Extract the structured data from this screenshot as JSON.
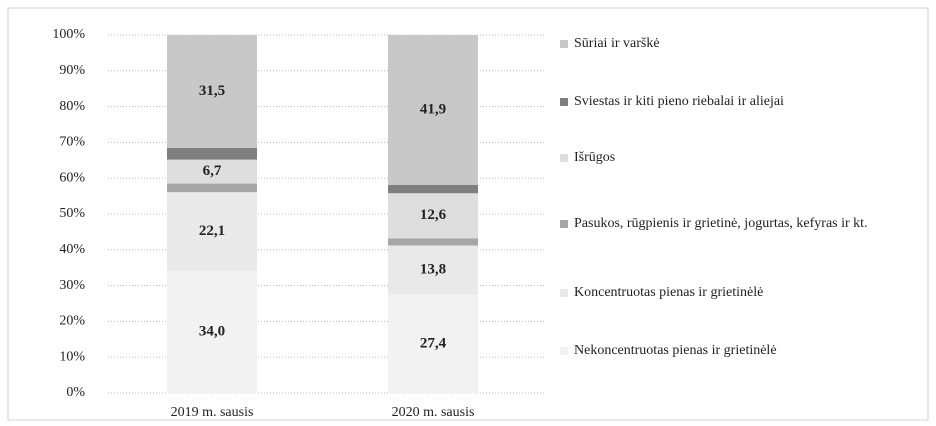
{
  "chart_data": {
    "type": "stacked_bar",
    "categories": [
      "2019 m. sausis",
      "2020 m. sausis"
    ],
    "series": [
      {
        "name": "Nekoncentruotas pienas ir grietinėlė",
        "color": "#f2f2f2",
        "values": [
          34.0,
          27.4
        ],
        "value_labels": [
          "34,0",
          "27,4"
        ]
      },
      {
        "name": "Koncentruotas pienas ir grietinėlė",
        "color": "#e9e9e9",
        "values": [
          22.1,
          13.8
        ],
        "value_labels": [
          "22,1",
          "13,8"
        ]
      },
      {
        "name": "Pasukos, rūgpienis ir grietinė, jogurtas, kefyras ir kt.",
        "color": "#a6a6a6",
        "values": [
          2.4,
          2.0
        ],
        "value_labels": [
          null,
          null
        ]
      },
      {
        "name": "Išrūgos",
        "color": "#dedede",
        "values": [
          6.7,
          12.6
        ],
        "value_labels": [
          "6,7",
          "12,6"
        ]
      },
      {
        "name": "Sviestas ir kiti pieno riebalai ir aliejai",
        "color": "#7f7f7f",
        "values": [
          3.3,
          2.3
        ],
        "value_labels": [
          null,
          null
        ]
      },
      {
        "name": "Sūriai ir varškė",
        "color": "#c8c8c8",
        "values": [
          31.5,
          41.9
        ],
        "value_labels": [
          "31,5",
          "41,9"
        ]
      }
    ],
    "ylim": [
      0,
      100
    ],
    "yticks": [
      {
        "value": 0,
        "label": "0%"
      },
      {
        "value": 10,
        "label": "10%"
      },
      {
        "value": 20,
        "label": "20%"
      },
      {
        "value": 30,
        "label": "30%"
      },
      {
        "value": 40,
        "label": "40%"
      },
      {
        "value": 50,
        "label": "50%"
      },
      {
        "value": 60,
        "label": "60%"
      },
      {
        "value": 70,
        "label": "70%"
      },
      {
        "value": 80,
        "label": "80%"
      },
      {
        "value": 90,
        "label": "90%"
      },
      {
        "value": 100,
        "label": "100%"
      }
    ],
    "grid": true,
    "legend": "right"
  }
}
